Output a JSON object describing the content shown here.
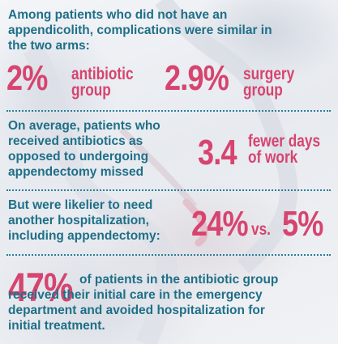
{
  "section1": {
    "intro": "Among patients who did not have an appendicolith, complications were similar in the two arms:",
    "stat_antibiotic": "2%",
    "label_antibiotic": "antibiotic group",
    "stat_surgery": "2.9%",
    "label_surgery": "surgery group"
  },
  "section2": {
    "text": "On average, patients who received antibiotics as opposed to undergoing appendectomy missed",
    "stat": "3.4",
    "label": "fewer days of work"
  },
  "section3": {
    "text": "But were likelier to need another hospitalization, including appendectomy:",
    "stat_a": "24%",
    "vs": "vs.",
    "stat_b": "5%"
  },
  "section4": {
    "stat": "47%",
    "text": "of patients in the antibiotic group received their initial care in the emergency department and avoided hospitalization for initial treatment."
  },
  "colors": {
    "teal": "#1f6f87",
    "pink": "#d6446f"
  }
}
